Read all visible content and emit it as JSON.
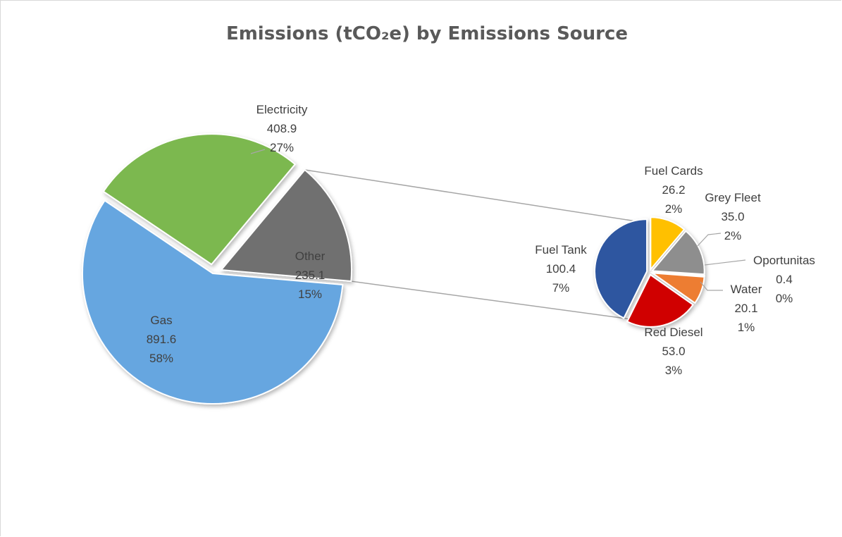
{
  "chart_data": {
    "type": "pie",
    "subtype": "pie-of-pie",
    "title": "Emissions (tCO₂e) by Emissions Source",
    "main_slices": [
      {
        "label": "Electricity",
        "value": 408.9,
        "percent": "27%",
        "value_text": "408.9",
        "color": "#7cb84f"
      },
      {
        "label": "Other",
        "value": 235.1,
        "percent": "15%",
        "value_text": "235.1",
        "color": "#6f6f6f"
      },
      {
        "label": "Gas",
        "value": 891.6,
        "percent": "58%",
        "value_text": "891.6",
        "color": "#66a6e0"
      }
    ],
    "secondary_slices": [
      {
        "label": "Fuel Cards",
        "value": 26.2,
        "percent": "2%",
        "value_text": "26.2",
        "color": "#ffc000"
      },
      {
        "label": "Grey Fleet",
        "value": 35.0,
        "percent": "2%",
        "value_text": "35.0",
        "color": "#8e8e8e"
      },
      {
        "label": "Oportunitas",
        "value": 0.4,
        "percent": "0%",
        "value_text": "0.4",
        "color": "#a5a5a5"
      },
      {
        "label": "Water",
        "value": 20.1,
        "percent": "1%",
        "value_text": "20.1",
        "color": "#ed7d31"
      },
      {
        "label": "Red Diesel",
        "value": 53.0,
        "percent": "3%",
        "value_text": "53.0",
        "color": "#d00000"
      },
      {
        "label": "Fuel Tank",
        "value": 100.4,
        "percent": "7%",
        "value_text": "100.4",
        "color": "#2e56a0"
      }
    ],
    "legend": "none"
  }
}
